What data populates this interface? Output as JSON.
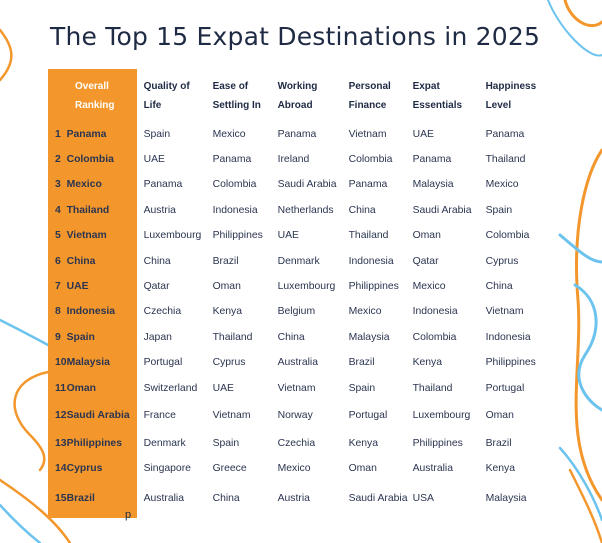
{
  "title": "The Top 15 Expat Destinations in 2025",
  "colors": {
    "rank_column": "#f3972c",
    "title_text": "#1f2a44",
    "decor_orange": "#f3972c",
    "decor_blue": "#6cc3ee"
  },
  "headers": {
    "overall_ranking": [
      "Overall",
      "Ranking"
    ],
    "quality_of_life": [
      "Quality of",
      "Life"
    ],
    "ease_of_settling_in": [
      "Ease of",
      "Settling In"
    ],
    "working_abroad": [
      "Working",
      "Abroad"
    ],
    "personal_finance": [
      "Personal",
      "Finance"
    ],
    "expat_essentials": [
      "Expat",
      "Essentials"
    ],
    "happiness_level": [
      "Happiness",
      "Level"
    ]
  },
  "rows": [
    {
      "rank": "1",
      "overall": "Panama",
      "quality_of_life": "Spain",
      "ease_of_settling_in": "Mexico",
      "working_abroad": "Panama",
      "personal_finance": "Vietnam",
      "expat_essentials": "UAE",
      "happiness_level": "Panama"
    },
    {
      "rank": "2",
      "overall": "Colombia",
      "quality_of_life": "UAE",
      "ease_of_settling_in": "Panama",
      "working_abroad": "Ireland",
      "personal_finance": "Colombia",
      "expat_essentials": "Panama",
      "happiness_level": "Thailand"
    },
    {
      "rank": "3",
      "overall": "Mexico",
      "quality_of_life": "Panama",
      "ease_of_settling_in": "Colombia",
      "working_abroad": "Saudi Arabia",
      "personal_finance": "Panama",
      "expat_essentials": "Malaysia",
      "happiness_level": "Mexico"
    },
    {
      "rank": "4",
      "overall": "Thailand",
      "quality_of_life": "Austria",
      "ease_of_settling_in": "Indonesia",
      "working_abroad": "Netherlands",
      "personal_finance": "China",
      "expat_essentials": "Saudi Arabia",
      "happiness_level": "Spain"
    },
    {
      "rank": "5",
      "overall": "Vietnam",
      "quality_of_life": "Luxembourg",
      "ease_of_settling_in": "Philippines",
      "working_abroad": "UAE",
      "personal_finance": "Thailand",
      "expat_essentials": "Oman",
      "happiness_level": "Colombia"
    },
    {
      "rank": "6",
      "overall": "China",
      "quality_of_life": "China",
      "ease_of_settling_in": "Brazil",
      "working_abroad": "Denmark",
      "personal_finance": "Indonesia",
      "expat_essentials": "Qatar",
      "happiness_level": "Cyprus"
    },
    {
      "rank": "7",
      "overall": "UAE",
      "quality_of_life": "Qatar",
      "ease_of_settling_in": "Oman",
      "working_abroad": "Luxembourg",
      "personal_finance": "Philippines",
      "expat_essentials": "Mexico",
      "happiness_level": "China"
    },
    {
      "rank": "8",
      "overall": "Indonesia",
      "quality_of_life": "Czechia",
      "ease_of_settling_in": "Kenya",
      "working_abroad": "Belgium",
      "personal_finance": "Mexico",
      "expat_essentials": "Indonesia",
      "happiness_level": "Vietnam"
    },
    {
      "rank": "9",
      "overall": "Spain",
      "quality_of_life": "Japan",
      "ease_of_settling_in": "Thailand",
      "working_abroad": "China",
      "personal_finance": "Malaysia",
      "expat_essentials": "Colombia",
      "happiness_level": "Indonesia"
    },
    {
      "rank": "10",
      "overall": "Malaysia",
      "quality_of_life": "Portugal",
      "ease_of_settling_in": "Cyprus",
      "working_abroad": "Australia",
      "personal_finance": "Brazil",
      "expat_essentials": "Kenya",
      "happiness_level": "Philippines"
    },
    {
      "rank": "11",
      "overall": "Oman",
      "quality_of_life": "Switzerland",
      "ease_of_settling_in": "UAE",
      "working_abroad": "Vietnam",
      "personal_finance": "Spain",
      "expat_essentials": "Thailand",
      "happiness_level": "Portugal"
    },
    {
      "rank": "12",
      "overall": "Saudi Arabia",
      "quality_of_life": "France",
      "ease_of_settling_in": "Vietnam",
      "working_abroad": "Norway",
      "personal_finance": "Portugal",
      "expat_essentials": "Luxembourg",
      "happiness_level": "Oman"
    },
    {
      "rank": "13",
      "overall": "Philippines",
      "quality_of_life": "Denmark",
      "ease_of_settling_in": "Spain",
      "working_abroad": "Czechia",
      "personal_finance": "Kenya",
      "expat_essentials": "Philippines",
      "happiness_level": "Brazil"
    },
    {
      "rank": "14",
      "overall": "Cyprus",
      "quality_of_life": "Singapore",
      "ease_of_settling_in": "Greece",
      "working_abroad": "Mexico",
      "personal_finance": "Oman",
      "expat_essentials": "Australia",
      "happiness_level": "Kenya"
    },
    {
      "rank": "15",
      "overall": "Brazil",
      "quality_of_life": "Australia",
      "ease_of_settling_in": "China",
      "working_abroad": "Austria",
      "personal_finance": "Saudi Arabia",
      "expat_essentials": "USA",
      "happiness_level": "Malaysia"
    }
  ],
  "footer_fragment": "p"
}
